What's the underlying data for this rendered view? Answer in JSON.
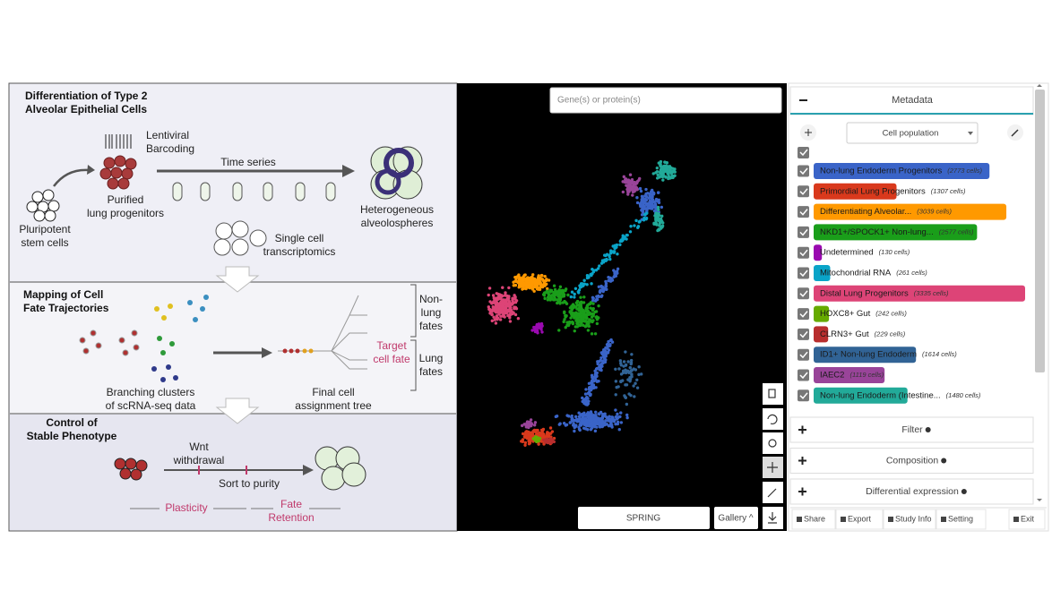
{
  "diagram": {
    "title": [
      "Differentiation of Type 2",
      "Alveolar Epithelial Cells"
    ],
    "barcoding": [
      "Lentiviral",
      "Barcoding"
    ],
    "time_series": [
      "Time series"
    ],
    "purified": [
      "Purified",
      "lung progenitors"
    ],
    "pluripotent": [
      "Pluripotent",
      "stem cells"
    ],
    "heterogeneous": [
      "Heterogeneous",
      "alveolospheres"
    ],
    "single_cell": [
      "Single cell",
      "transcriptomics"
    ],
    "mapping": [
      "Mapping of Cell",
      "Fate Trajectories"
    ],
    "non_lung": [
      "Non-",
      "lung",
      "fates"
    ],
    "target": [
      "Target",
      "cell fate"
    ],
    "lung_fates": [
      "Lung",
      "fates"
    ],
    "branching": [
      "Branching clusters",
      "of scRNA-seq data"
    ],
    "final": [
      "Final cell",
      "assignment tree"
    ],
    "control": [
      "Control of",
      "Stable Phenotype"
    ],
    "wnt": [
      "Wnt",
      "withdrawal"
    ],
    "sort": [
      "Sort to purity"
    ],
    "plasticity": [
      "Plasticity"
    ],
    "fate": [
      "Fate",
      "Retention"
    ]
  },
  "viewer": {
    "search_placeholder": "Gene(s) or protein(s)",
    "layout_button": "SPRING",
    "gallery_button": "Gallery ^"
  },
  "metadata": {
    "header": "Metadata",
    "dropdown": "Cell population",
    "populations": [
      {
        "name": "Non-lung Endoderm Progenitors",
        "cells": {
          "value": 2773,
          "label": "(2773 cells)"
        },
        "color": "#3a64c8"
      },
      {
        "name": "Primordial Lung Progenitors",
        "cells": {
          "value": 1307,
          "label": "(1307 cells)"
        },
        "color": "#d9391c"
      },
      {
        "name": "Differentiating Alveolar...",
        "cells": {
          "value": 3039,
          "label": "(3039 cells)"
        },
        "color": "#ff9900"
      },
      {
        "name": "NKD1+/SPOCK1+ Non-lung...",
        "cells": {
          "value": 2577,
          "label": "(2577 cells)"
        },
        "color": "#1a9e1a"
      },
      {
        "name": "Undetermined",
        "cells": {
          "value": 130,
          "label": "(130 cells)"
        },
        "color": "#9a0ab0"
      },
      {
        "name": "Mitochondrial RNA",
        "cells": {
          "value": 261,
          "label": "(261 cells)"
        },
        "color": "#0aa4c8"
      },
      {
        "name": "Distal Lung Progenitors",
        "cells": {
          "value": 3335,
          "label": "(3335 cells)"
        },
        "color": "#dd4477"
      },
      {
        "name": "HOXC8+ Gut",
        "cells": {
          "value": 242,
          "label": "(242 cells)"
        },
        "color": "#66aa00"
      },
      {
        "name": "CLRN3+ Gut",
        "cells": {
          "value": 229,
          "label": "(229 cells)"
        },
        "color": "#b82e2e"
      },
      {
        "name": "ID1+ Non-lung Endoderm",
        "cells": {
          "value": 1614,
          "label": "(1614 cells)"
        },
        "color": "#316395"
      },
      {
        "name": "IAEC2",
        "cells": {
          "value": 1119,
          "label": "(1119 cells)"
        },
        "color": "#994499"
      },
      {
        "name": "Non-lung Endoderm (Intestine...",
        "cells": {
          "value": 1480,
          "label": "(1480 cells)"
        },
        "color": "#22aa99"
      }
    ],
    "sections": [
      "Filter",
      "Composition",
      "Differential expression"
    ],
    "footer": [
      "Share",
      "Export",
      "Study Info",
      "Setting",
      "Exit"
    ]
  }
}
